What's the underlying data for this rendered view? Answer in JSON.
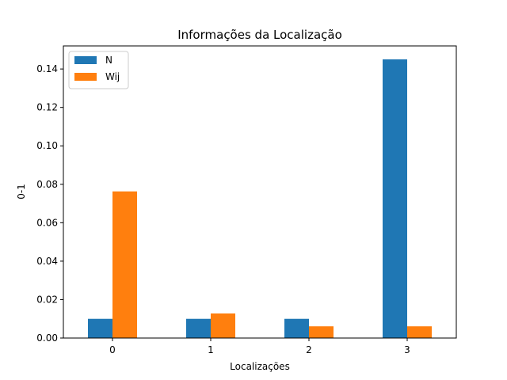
{
  "chart_data": {
    "type": "bar",
    "title": "Informações da Localização",
    "xlabel": "Localizações",
    "ylabel": "0-1",
    "categories": [
      "0",
      "1",
      "2",
      "3"
    ],
    "series": [
      {
        "name": "N",
        "color": "#1f77b4",
        "values": [
          0.01,
          0.01,
          0.01,
          0.145
        ]
      },
      {
        "name": "Wij",
        "color": "#ff7f0e",
        "values": [
          0.0763,
          0.0128,
          0.0061,
          0.0061
        ]
      }
    ],
    "ylim": [
      0,
      0.152
    ],
    "yticks": [
      "0.00",
      "0.02",
      "0.04",
      "0.06",
      "0.08",
      "0.10",
      "0.12",
      "0.14"
    ],
    "grid": false,
    "legend_position": "top-left"
  }
}
